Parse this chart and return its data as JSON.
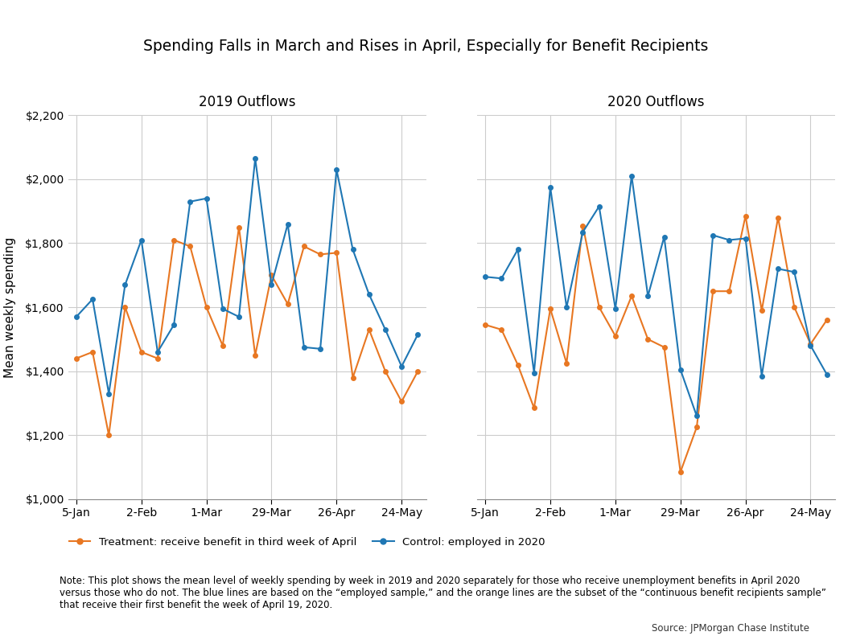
{
  "title": "Spending Falls in March and Rises in April, Especially for Benefit Recipients",
  "subtitle_left": "2019 Outflows",
  "subtitle_right": "2020 Outflows",
  "ylabel": "Mean weekly spending",
  "x_labels": [
    "5-Jan",
    "2-Feb",
    "1-Mar",
    "29-Mar",
    "26-Apr",
    "24-May"
  ],
  "ylim": [
    1000,
    2200
  ],
  "yticks": [
    1000,
    1200,
    1400,
    1600,
    1800,
    2000,
    2200
  ],
  "legend_treatment": "Treatment: receive benefit in third week of April",
  "legend_control": "Control: employed in 2020",
  "note": "Note: This plot shows the mean level of weekly spending by week in 2019 and 2020 separately for those who receive unemployment benefits in April 2020\nversus those who do not. The blue lines are based on the “employed sample,” and the orange lines are the subset of the “continuous benefit recipients sample”\nthat receive their first benefit the week of April 19, 2020.",
  "source": "Source: JPMorgan Chase Institute",
  "color_treatment": "#E87722",
  "color_control": "#1F77B4",
  "treatment_2019": [
    1440,
    1460,
    1200,
    1600,
    1460,
    1440,
    1810,
    1790,
    1600,
    1480,
    1850,
    1450,
    1700,
    1610,
    1790,
    1765,
    1770,
    1380,
    1530,
    1400,
    1305,
    1400
  ],
  "control_2019": [
    1570,
    1625,
    1330,
    1670,
    1810,
    1460,
    1545,
    1930,
    1940,
    1595,
    1570,
    2065,
    1670,
    1860,
    1475,
    1470,
    2030,
    1780,
    1640,
    1530,
    1415,
    1515
  ],
  "treatment_2020": [
    1545,
    1530,
    1420,
    1285,
    1595,
    1425,
    1855,
    1600,
    1510,
    1635,
    1500,
    1475,
    1085,
    1225,
    1650,
    1650,
    1885,
    1590,
    1880,
    1600,
    1485,
    1560
  ],
  "control_2020": [
    1695,
    1690,
    1780,
    1395,
    1975,
    1600,
    1835,
    1915,
    1595,
    2010,
    1635,
    1820,
    1405,
    1260,
    1825,
    1810,
    1815,
    1385,
    1720,
    1710,
    1480,
    1390
  ],
  "n_points": 22,
  "background_color": "#FFFFFF",
  "grid_color": "#CCCCCC"
}
